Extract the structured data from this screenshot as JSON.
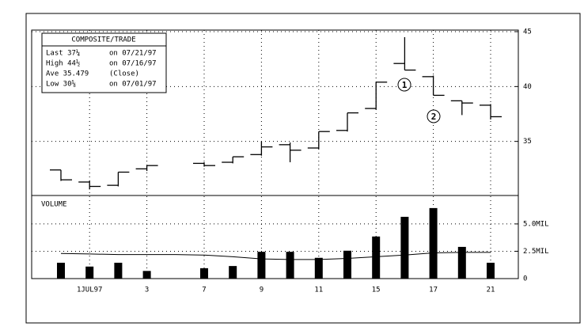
{
  "chart_data": [
    {
      "type": "ohlc",
      "info": {
        "title": "COMPOSITE/TRADE",
        "rows": [
          [
            "Last 37¼",
            "on 07/21/97"
          ],
          [
            "High 44½",
            "on 07/16/97"
          ],
          [
            "Ave 35.479",
            "(Close)"
          ],
          [
            "Low 30⅝",
            "on 07/01/97"
          ]
        ]
      },
      "annotations": [
        "1",
        "2"
      ],
      "open": [
        32.4,
        31.3,
        31.0,
        32.5,
        null,
        33.0,
        33.1,
        33.8,
        34.7,
        34.4,
        36.0,
        38.0,
        42.1,
        40.9,
        38.7,
        38.3
      ],
      "high": [
        32.4,
        31.4,
        32.2,
        32.8,
        null,
        33.1,
        33.6,
        35.0,
        34.9,
        35.9,
        37.6,
        40.4,
        44.5,
        41.0,
        38.7,
        38.4
      ],
      "low": [
        31.4,
        30.625,
        30.9,
        32.3,
        null,
        32.7,
        33.0,
        33.7,
        33.1,
        34.3,
        35.9,
        37.9,
        41.5,
        39.2,
        37.4,
        37.0
      ],
      "close": [
        31.5,
        30.9,
        32.2,
        32.8,
        null,
        32.8,
        33.6,
        34.5,
        34.2,
        35.9,
        37.6,
        40.4,
        41.5,
        39.2,
        38.5,
        37.25
      ],
      "color": "#000000",
      "ylim": [
        30,
        45
      ],
      "yticks": [
        35,
        40,
        45
      ],
      "grid": true
    },
    {
      "type": "bar",
      "title": "VOLUME",
      "categories": [
        null,
        "1JUL97",
        null,
        "3",
        null,
        "7",
        null,
        "9",
        null,
        "11",
        null,
        "15",
        null,
        "17",
        null,
        "21"
      ],
      "values": [
        1.45,
        1.1,
        1.45,
        0.7,
        null,
        0.95,
        1.15,
        2.45,
        2.45,
        1.9,
        2.55,
        3.85,
        5.65,
        6.45,
        2.9,
        1.45
      ],
      "line_values": [
        2.3,
        2.25,
        2.2,
        2.2,
        2.2,
        2.15,
        2.0,
        1.8,
        1.75,
        1.75,
        1.85,
        2.0,
        2.15,
        2.35,
        2.4,
        2.4
      ],
      "color": "#000000",
      "ylim": [
        0,
        7.6
      ],
      "yticks": [
        0,
        {
          "value": 2.5,
          "label": "2.5MIL"
        },
        {
          "value": 5,
          "label": "5.0MIL"
        }
      ],
      "grid": true
    }
  ]
}
